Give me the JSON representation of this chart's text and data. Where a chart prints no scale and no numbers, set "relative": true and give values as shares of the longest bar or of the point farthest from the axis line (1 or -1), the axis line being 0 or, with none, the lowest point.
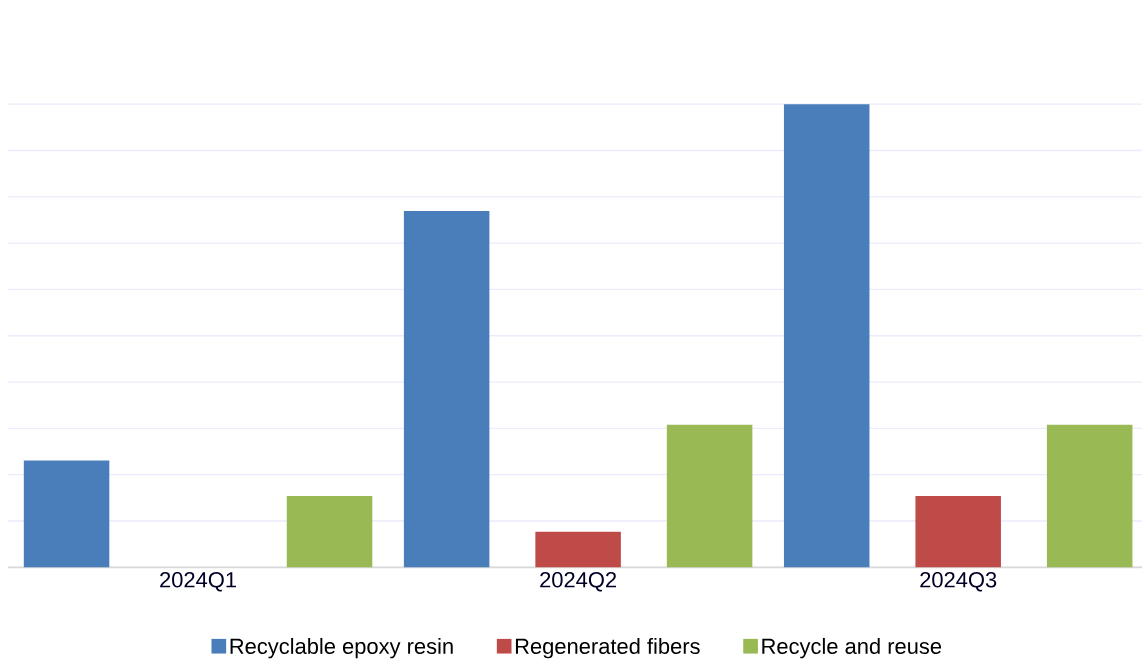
{
  "chart_data": {
    "type": "bar",
    "relative": true,
    "grid": "y",
    "legend": "bottom",
    "categories": [
      "2024Q1",
      "2024Q2",
      "2024Q3"
    ],
    "series": [
      {
        "name": "Recyclable epoxy resin",
        "color": "#4a7ebb",
        "values": [
          0.2308,
          0.7692,
          1
        ]
      },
      {
        "name": "Regenerated fibers",
        "color": "#be4b48",
        "values": [
          0,
          0.0769,
          0.1538
        ]
      },
      {
        "name": "Recycle and reuse",
        "color": "#98b954",
        "values": [
          0.1538,
          0.3077,
          0.3077
        ]
      }
    ]
  }
}
